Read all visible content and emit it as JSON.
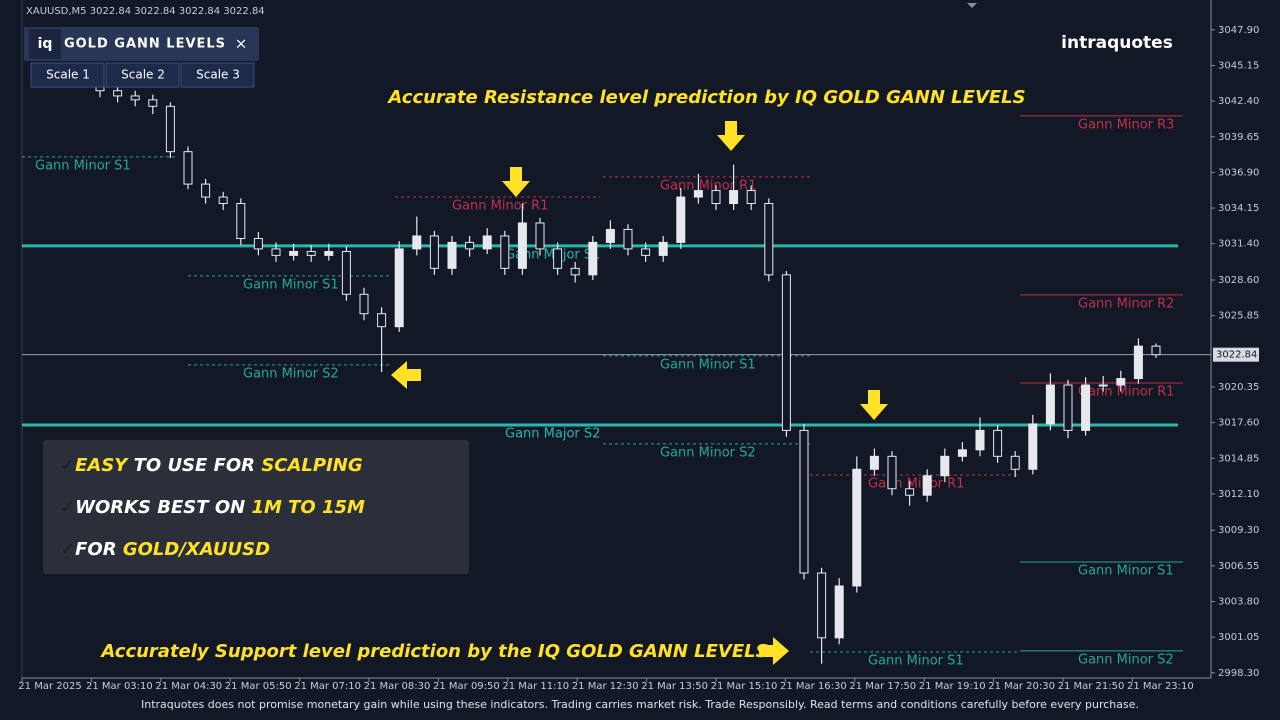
{
  "header": {
    "symbol_line": "XAUUSD,M5  3022.84 3022.84 3022.84 3022.84"
  },
  "panel": {
    "logo": "iq",
    "title": "GOLD GANN LEVELS",
    "close": "×",
    "tabs": [
      "Scale 1",
      "Scale 2",
      "Scale 3"
    ]
  },
  "brand": "intraquotes",
  "annotations": {
    "resistance": "Accurate Resistance level prediction by IQ GOLD GANN LEVELS",
    "support": "Accurately Support level prediction by the IQ GOLD GANN LEVELS"
  },
  "info_box": {
    "lines": [
      [
        {
          "text": "✓",
          "color": "#1b1e26"
        },
        {
          "text": "EASY",
          "color": "#ffe227"
        },
        {
          "text": " TO USE FOR ",
          "color": "#ffffff"
        },
        {
          "text": "SCALPING",
          "color": "#ffe227"
        }
      ],
      [
        {
          "text": "✓",
          "color": "#1b1e26"
        },
        {
          "text": "WORKS BEST ON ",
          "color": "#ffffff"
        },
        {
          "text": "1M TO 15M",
          "color": "#ffe227"
        }
      ],
      [
        {
          "text": "✓",
          "color": "#1b1e26"
        },
        {
          "text": "FOR ",
          "color": "#ffffff"
        },
        {
          "text": "GOLD/XAUUSD",
          "color": "#ffe227"
        }
      ]
    ]
  },
  "footer": "Intraquotes does not promise monetary gain while using these indicators. Trading carries market risk. Trade Responsibly. Read terms and conditions carefully before every purchase.",
  "chart_data": {
    "type": "candlestick",
    "ylim": [
      2997.9,
      3050.2
    ],
    "yticks": [
      {
        "value": 3047.9,
        "label": "3047.90"
      },
      {
        "value": 3045.15,
        "label": "3045.15"
      },
      {
        "value": 3042.4,
        "label": "3042.40"
      },
      {
        "value": 3039.65,
        "label": "3039.65"
      },
      {
        "value": 3036.9,
        "label": "3036.90"
      },
      {
        "value": 3034.15,
        "label": "3034.15"
      },
      {
        "value": 3031.4,
        "label": "3031.40"
      },
      {
        "value": 3028.6,
        "label": "3028.60"
      },
      {
        "value": 3025.85,
        "label": "3025.85"
      },
      {
        "value": 3020.35,
        "label": "3020.35"
      },
      {
        "value": 3017.6,
        "label": "3017.60"
      },
      {
        "value": 3014.85,
        "label": "3014.85"
      },
      {
        "value": 3012.1,
        "label": "3012.10"
      },
      {
        "value": 3009.3,
        "label": "3009.30"
      },
      {
        "value": 3006.55,
        "label": "3006.55"
      },
      {
        "value": 3003.8,
        "label": "3003.80"
      },
      {
        "value": 3001.05,
        "label": "3001.05"
      },
      {
        "value": 2998.3,
        "label": "2998.30"
      }
    ],
    "xticks": [
      "21 Mar 2025",
      "21 Mar 03:10",
      "21 Mar 04:30",
      "21 Mar 05:50",
      "21 Mar 07:10",
      "21 Mar 08:30",
      "21 Mar 09:50",
      "21 Mar 11:10",
      "21 Mar 12:30",
      "21 Mar 13:50",
      "21 Mar 15:10",
      "21 Mar 16:30",
      "21 Mar 17:50",
      "21 Mar 19:10",
      "21 Mar 20:30",
      "21 Mar 21:50",
      "21 Mar 23:10"
    ],
    "up_color": "#e6e8ee",
    "down_color": "#e6e8ee",
    "open": [
      3043.6,
      3043.2,
      3042.8,
      3042.5,
      3042.0,
      3038.5,
      3036.0,
      3035.0,
      3034.5,
      3031.8,
      3031.0,
      3030.5,
      3030.8,
      3030.5,
      3030.8,
      3027.5,
      3026.0,
      3025.0,
      3031.0,
      3032.0,
      3029.5,
      3031.5,
      3031.0,
      3032.0,
      3029.5,
      3033.0,
      3031.0,
      3029.5,
      3029.0,
      3031.5,
      3032.5,
      3031.0,
      3030.5,
      3031.5,
      3035.0,
      3035.5,
      3034.5,
      3035.5,
      3034.5,
      3029.0,
      3017.0,
      3006.0,
      3001.0,
      3005.0,
      3014.0,
      3015.0,
      3012.5,
      3012.0,
      3013.5,
      3015.0,
      3015.5,
      3017.0,
      3015.0,
      3014.0,
      3017.5,
      3020.5,
      3017.0,
      3020.5,
      3020.5,
      3021.0,
      3023.5
    ],
    "high": [
      3044.0,
      3043.6,
      3043.2,
      3042.9,
      3042.3,
      3038.9,
      3036.4,
      3035.4,
      3034.9,
      3032.3,
      3031.5,
      3031.4,
      3031.3,
      3031.4,
      3031.2,
      3028.0,
      3026.5,
      3031.6,
      3033.5,
      3032.4,
      3032.0,
      3032.0,
      3032.6,
      3032.4,
      3034.5,
      3033.4,
      3031.5,
      3030.0,
      3032.0,
      3033.2,
      3032.9,
      3031.5,
      3032.0,
      3035.7,
      3036.8,
      3035.9,
      3037.5,
      3035.9,
      3034.9,
      3029.3,
      3017.5,
      3006.4,
      3005.6,
      3015.0,
      3015.6,
      3015.4,
      3013.1,
      3014.0,
      3015.6,
      3016.1,
      3018.0,
      3017.4,
      3015.4,
      3018.2,
      3021.4,
      3020.9,
      3021.1,
      3021.2,
      3021.6,
      3024.1,
      3023.7
    ],
    "low": [
      3042.7,
      3042.3,
      3042.0,
      3041.4,
      3038.0,
      3035.6,
      3034.5,
      3034.0,
      3031.3,
      3030.5,
      3030.0,
      3030.1,
      3030.0,
      3030.1,
      3027.0,
      3025.5,
      3021.5,
      3024.6,
      3030.5,
      3029.0,
      3029.0,
      3030.4,
      3030.6,
      3029.0,
      3029.0,
      3030.5,
      3029.0,
      3028.4,
      3028.6,
      3031.0,
      3030.5,
      3030.0,
      3030.0,
      3031.0,
      3034.5,
      3034.0,
      3034.0,
      3034.0,
      3028.5,
      3016.5,
      3005.5,
      2999.0,
      3000.5,
      3004.5,
      3013.5,
      3012.0,
      3011.2,
      3011.5,
      3013.0,
      3014.6,
      3015.0,
      3014.5,
      3013.4,
      3013.6,
      3017.0,
      3016.4,
      3016.6,
      3020.0,
      3020.0,
      3020.6,
      3022.6
    ],
    "close": [
      3043.2,
      3042.8,
      3042.5,
      3042.0,
      3038.5,
      3036.0,
      3035.0,
      3034.5,
      3031.8,
      3031.0,
      3030.5,
      3030.8,
      3030.5,
      3030.8,
      3027.5,
      3026.0,
      3025.0,
      3031.0,
      3032.0,
      3029.5,
      3031.5,
      3031.0,
      3032.0,
      3029.5,
      3033.0,
      3031.0,
      3029.5,
      3029.0,
      3031.5,
      3032.5,
      3031.0,
      3030.5,
      3031.5,
      3035.0,
      3035.5,
      3034.5,
      3035.5,
      3034.5,
      3029.0,
      3017.0,
      3006.0,
      3001.0,
      3005.0,
      3014.0,
      3015.0,
      3012.5,
      3012.0,
      3013.5,
      3015.0,
      3015.5,
      3017.0,
      3015.0,
      3014.0,
      3017.5,
      3020.5,
      3017.0,
      3020.5,
      3020.5,
      3021.0,
      3023.5,
      3022.84
    ],
    "last_price": {
      "value": 3022.84,
      "label": "3022.84"
    },
    "levels": [
      {
        "name": "Gann Major S1",
        "value": 3031.23,
        "color": "#2ab7ad",
        "style": "solid",
        "width": 3
      },
      {
        "name": "Gann Major S2",
        "value": 3017.42,
        "color": "#2ab7ad",
        "style": "solid",
        "width": 3
      },
      {
        "name": "Gann Minor S1",
        "value": 3038.1,
        "color": "#26a69a",
        "style": "dotted",
        "width": 1
      },
      {
        "name": "Gann Minor R1",
        "value": 3035.0,
        "color": "#c2304a",
        "style": "dotted",
        "width": 1
      },
      {
        "name": "Gann Minor S1",
        "value": 3028.92,
        "color": "#26a69a",
        "style": "dotted",
        "width": 1
      },
      {
        "name": "Gann Minor S2",
        "value": 3022.05,
        "color": "#26a69a",
        "style": "dotted",
        "width": 1
      },
      {
        "name": "Gann Minor R1",
        "value": 3036.56,
        "color": "#c2304a",
        "style": "dotted",
        "width": 1
      },
      {
        "name": "Gann Minor S1",
        "value": 3022.75,
        "color": "#26a69a",
        "style": "dotted",
        "width": 1
      },
      {
        "name": "Gann Minor S2",
        "value": 3015.96,
        "color": "#26a69a",
        "style": "dotted",
        "width": 1
      },
      {
        "name": "Gann Minor R1",
        "value": 3013.56,
        "color": "#c2304a",
        "style": "dotted",
        "width": 1
      },
      {
        "name": "Gann Minor S1",
        "value": 2999.91,
        "color": "#26a69a",
        "style": "dotted",
        "width": 1
      },
      {
        "name": "Gann Minor R3",
        "value": 3041.26,
        "color": "#c2304a",
        "style": "solid",
        "width": 1
      },
      {
        "name": "Gann Minor R2",
        "value": 3027.45,
        "color": "#c2304a",
        "style": "solid",
        "width": 1
      },
      {
        "name": "Gann Minor R1",
        "value": 3020.66,
        "color": "#c2304a",
        "style": "solid",
        "width": 1
      },
      {
        "name": "Gann Minor S1",
        "value": 3006.85,
        "color": "#26a69a",
        "style": "solid",
        "width": 1
      },
      {
        "name": "Gann Minor S2",
        "value": 2999.99,
        "color": "#26a69a",
        "style": "solid",
        "width": 1
      }
    ]
  }
}
